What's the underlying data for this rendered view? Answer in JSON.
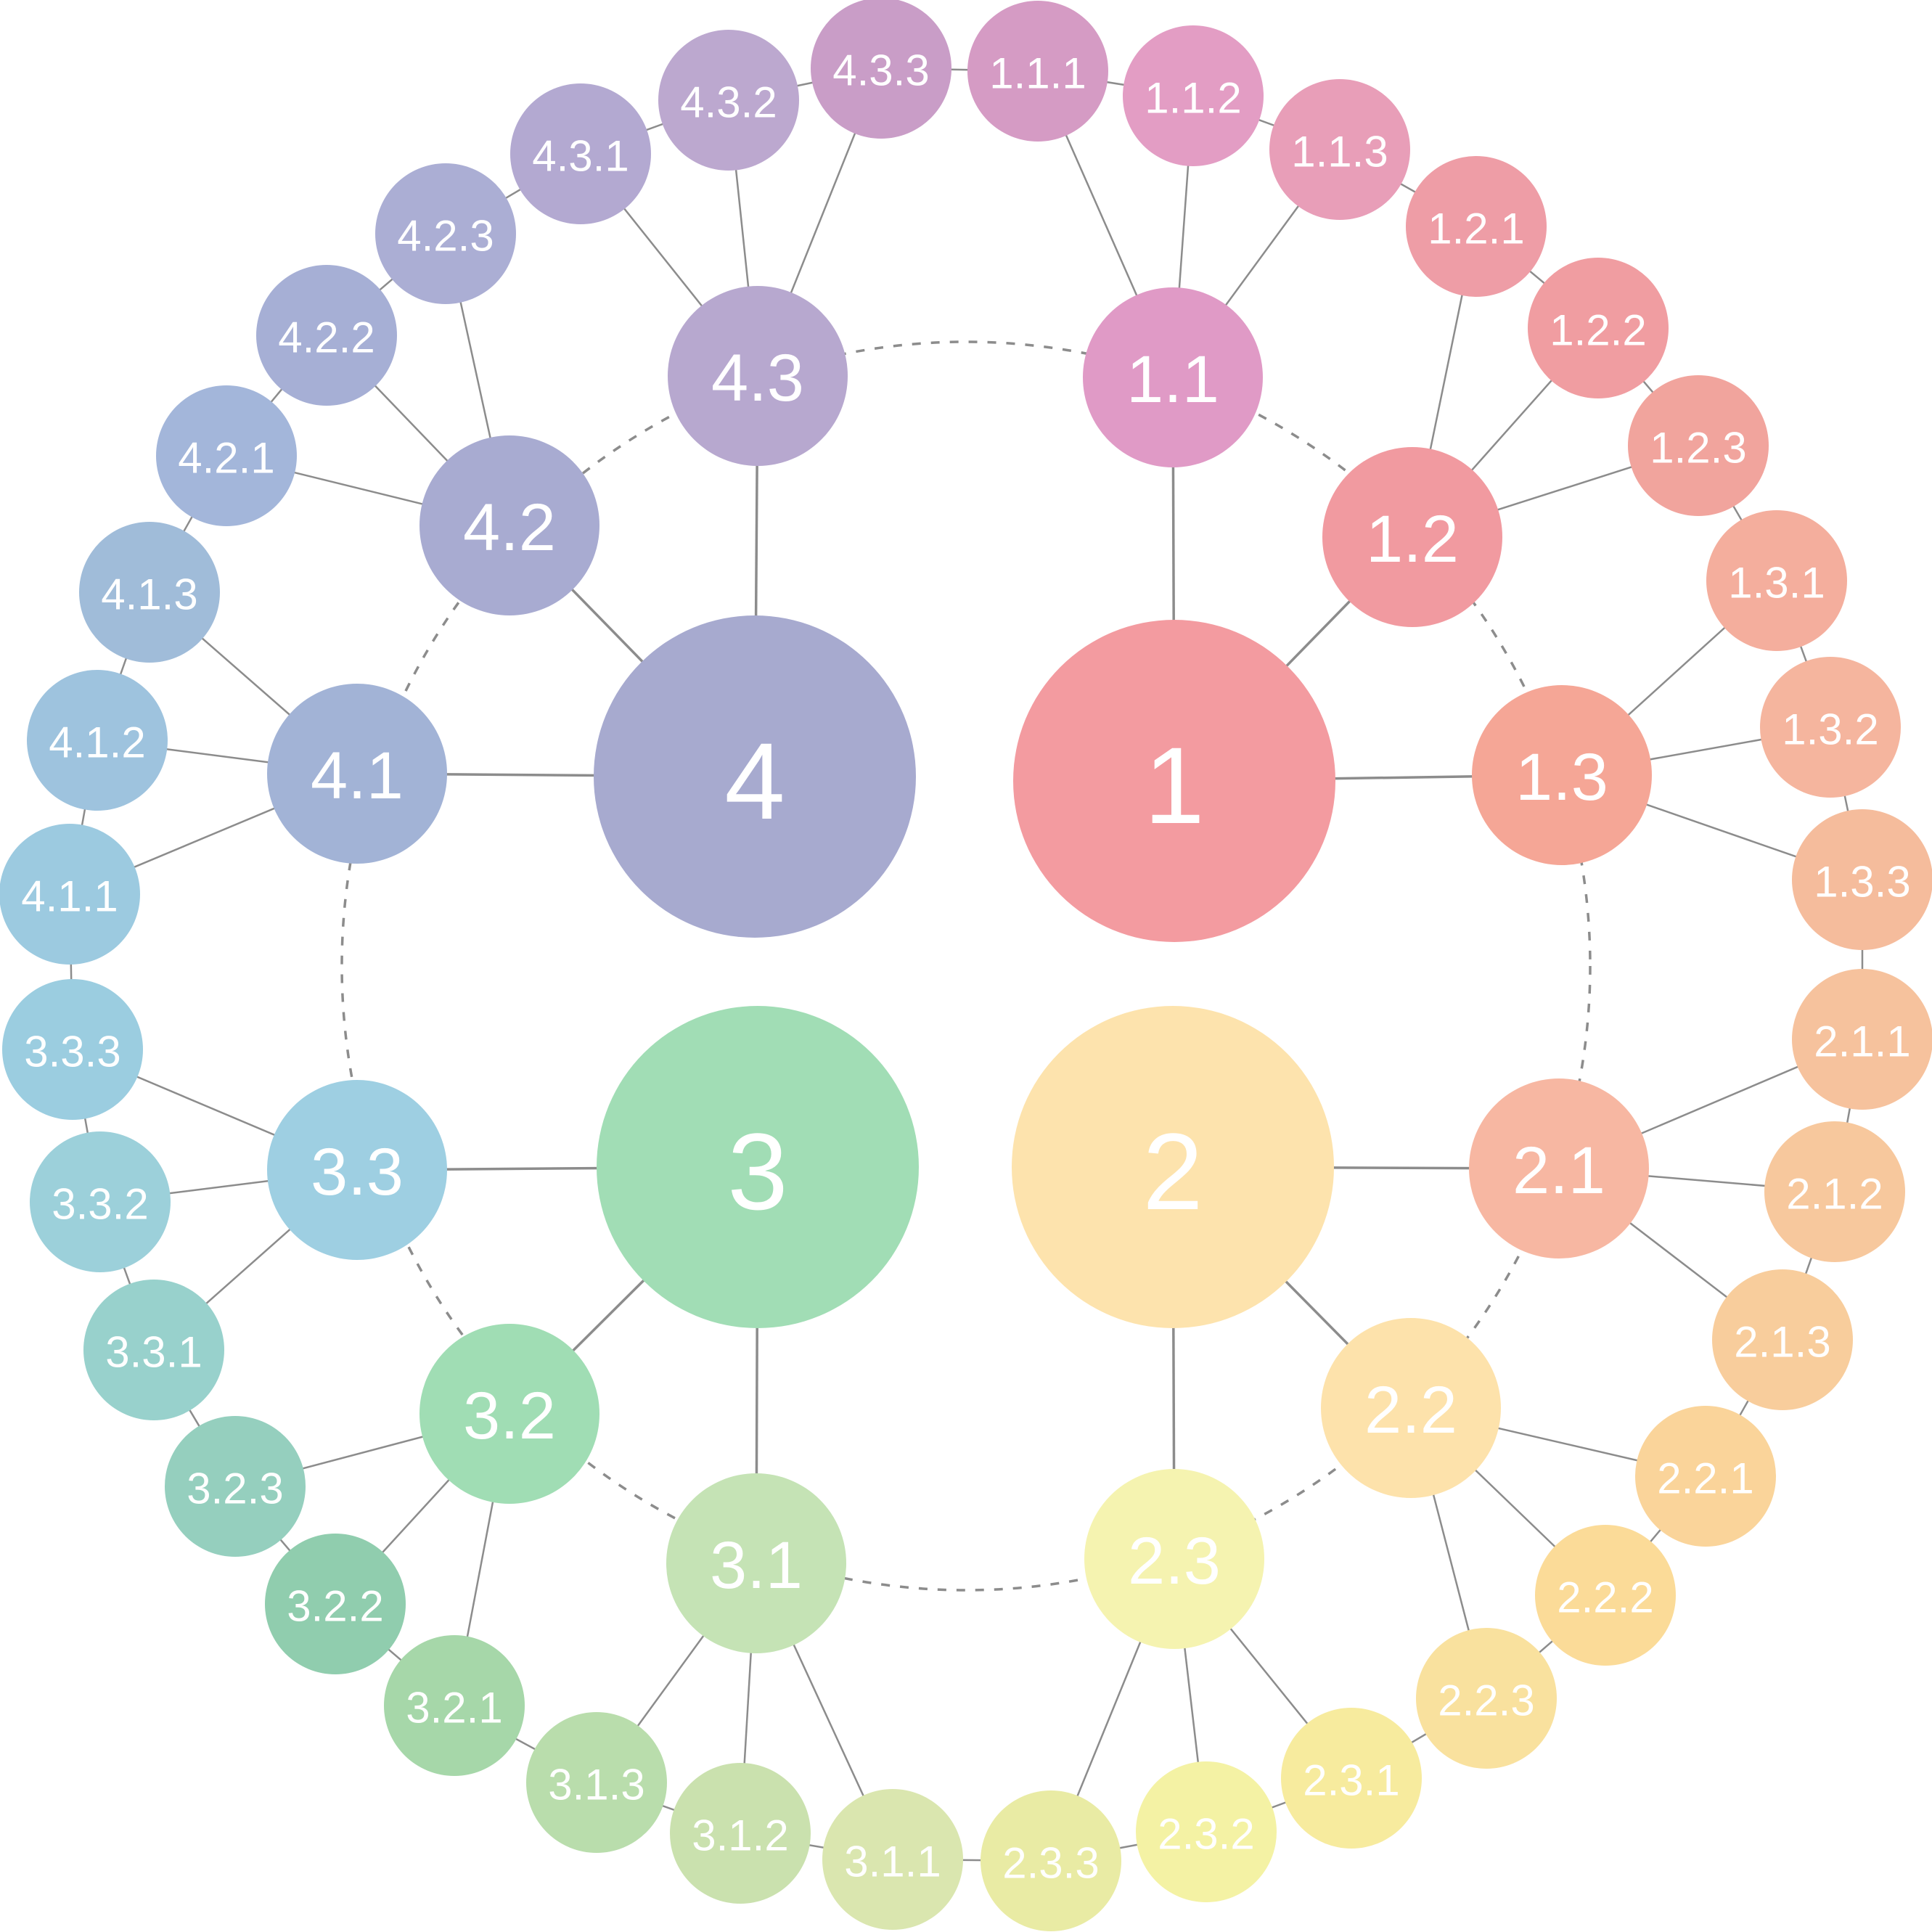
{
  "diagram": {
    "roots": [
      {
        "id": "1",
        "label": "1",
        "color": "#F39BA0"
      },
      {
        "id": "2",
        "label": "2",
        "color": "#FDE3AD"
      },
      {
        "id": "3",
        "label": "3",
        "color": "#A1DDB5"
      },
      {
        "id": "4",
        "label": "4",
        "color": "#A7AACF"
      }
    ],
    "level2": [
      {
        "id": "1.1",
        "label": "1.1",
        "parent": "1",
        "color": "#E09AC6"
      },
      {
        "id": "1.2",
        "label": "1.2",
        "parent": "1",
        "color": "#F19AA0"
      },
      {
        "id": "1.3",
        "label": "1.3",
        "parent": "1",
        "color": "#F5A696"
      },
      {
        "id": "2.1",
        "label": "2.1",
        "parent": "2",
        "color": "#F7B7A2"
      },
      {
        "id": "2.2",
        "label": "2.2",
        "parent": "2",
        "color": "#FDE2AB"
      },
      {
        "id": "2.3",
        "label": "2.3",
        "parent": "2",
        "color": "#F5F3B0"
      },
      {
        "id": "3.1",
        "label": "3.1",
        "parent": "3",
        "color": "#C5E3B5"
      },
      {
        "id": "3.2",
        "label": "3.2",
        "parent": "3",
        "color": "#A0DDB4"
      },
      {
        "id": "3.3",
        "label": "3.3",
        "parent": "3",
        "color": "#9ECFE2"
      },
      {
        "id": "4.1",
        "label": "4.1",
        "parent": "4",
        "color": "#A2B3D6"
      },
      {
        "id": "4.2",
        "label": "4.2",
        "parent": "4",
        "color": "#A8ABD1"
      },
      {
        "id": "4.3",
        "label": "4.3",
        "parent": "4",
        "color": "#B7A8CF"
      }
    ],
    "level3": [
      {
        "id": "1.1.1",
        "label": "1.1.1",
        "parent": "1.1",
        "color": "#D59BC4"
      },
      {
        "id": "1.1.2",
        "label": "1.1.2",
        "parent": "1.1",
        "color": "#E39DC4"
      },
      {
        "id": "1.1.3",
        "label": "1.1.3",
        "parent": "1.1",
        "color": "#E89EB8"
      },
      {
        "id": "1.2.1",
        "label": "1.2.1",
        "parent": "1.2",
        "color": "#EE9DA6"
      },
      {
        "id": "1.2.2",
        "label": "1.2.2",
        "parent": "1.2",
        "color": "#F09DA1"
      },
      {
        "id": "1.2.3",
        "label": "1.2.3",
        "parent": "1.2",
        "color": "#F1A49D"
      },
      {
        "id": "1.3.1",
        "label": "1.3.1",
        "parent": "1.3",
        "color": "#F4AE9D"
      },
      {
        "id": "1.3.2",
        "label": "1.3.2",
        "parent": "1.3",
        "color": "#F5B59E"
      },
      {
        "id": "1.3.3",
        "label": "1.3.3",
        "parent": "1.3",
        "color": "#F5BC9C"
      },
      {
        "id": "2.1.1",
        "label": "2.1.1",
        "parent": "2.1",
        "color": "#F6C29D"
      },
      {
        "id": "2.1.2",
        "label": "2.1.2",
        "parent": "2.1",
        "color": "#F7C89D"
      },
      {
        "id": "2.1.3",
        "label": "2.1.3",
        "parent": "2.1",
        "color": "#F8CD9C"
      },
      {
        "id": "2.2.1",
        "label": "2.2.1",
        "parent": "2.2",
        "color": "#FAD49A"
      },
      {
        "id": "2.2.2",
        "label": "2.2.2",
        "parent": "2.2",
        "color": "#FBDB98"
      },
      {
        "id": "2.2.3",
        "label": "2.2.3",
        "parent": "2.2",
        "color": "#F9E19E"
      },
      {
        "id": "2.3.1",
        "label": "2.3.1",
        "parent": "2.3",
        "color": "#F7EB9E"
      },
      {
        "id": "2.3.2",
        "label": "2.3.2",
        "parent": "2.3",
        "color": "#F4F2A4"
      },
      {
        "id": "2.3.3",
        "label": "2.3.3",
        "parent": "2.3",
        "color": "#E9EBA4"
      },
      {
        "id": "3.1.1",
        "label": "3.1.1",
        "parent": "3.1",
        "color": "#DAE6AF"
      },
      {
        "id": "3.1.2",
        "label": "3.1.2",
        "parent": "3.1",
        "color": "#CAE1AE"
      },
      {
        "id": "3.1.3",
        "label": "3.1.3",
        "parent": "3.1",
        "color": "#B9DDAC"
      },
      {
        "id": "3.2.1",
        "label": "3.2.1",
        "parent": "3.2",
        "color": "#A6D7A9"
      },
      {
        "id": "3.2.2",
        "label": "3.2.2",
        "parent": "3.2",
        "color": "#90CDAE"
      },
      {
        "id": "3.2.3",
        "label": "3.2.3",
        "parent": "3.2",
        "color": "#95CFBE"
      },
      {
        "id": "3.3.1",
        "label": "3.3.1",
        "parent": "3.3",
        "color": "#98D1CC"
      },
      {
        "id": "3.3.2",
        "label": "3.3.2",
        "parent": "3.3",
        "color": "#9CD0DA"
      },
      {
        "id": "3.3.3",
        "label": "3.3.3",
        "parent": "3.3",
        "color": "#9BCDE0"
      },
      {
        "id": "4.1.1",
        "label": "4.1.1",
        "parent": "4.1",
        "color": "#9CCAE0"
      },
      {
        "id": "4.1.2",
        "label": "4.1.2",
        "parent": "4.1",
        "color": "#9EC3DE"
      },
      {
        "id": "4.1.3",
        "label": "4.1.3",
        "parent": "4.1",
        "color": "#A0BCD9"
      },
      {
        "id": "4.2.1",
        "label": "4.2.1",
        "parent": "4.2",
        "color": "#A3B6DA"
      },
      {
        "id": "4.2.2",
        "label": "4.2.2",
        "parent": "4.2",
        "color": "#A6AFD5"
      },
      {
        "id": "4.2.3",
        "label": "4.2.3",
        "parent": "4.2",
        "color": "#ABAED4"
      },
      {
        "id": "4.3.1",
        "label": "4.3.1",
        "parent": "4.3",
        "color": "#B3A9D1"
      },
      {
        "id": "4.3.2",
        "label": "4.3.2",
        "parent": "4.3",
        "color": "#BCA8CF"
      },
      {
        "id": "4.3.3",
        "label": "4.3.3",
        "parent": "4.3",
        "color": "#C99DC7"
      }
    ]
  }
}
